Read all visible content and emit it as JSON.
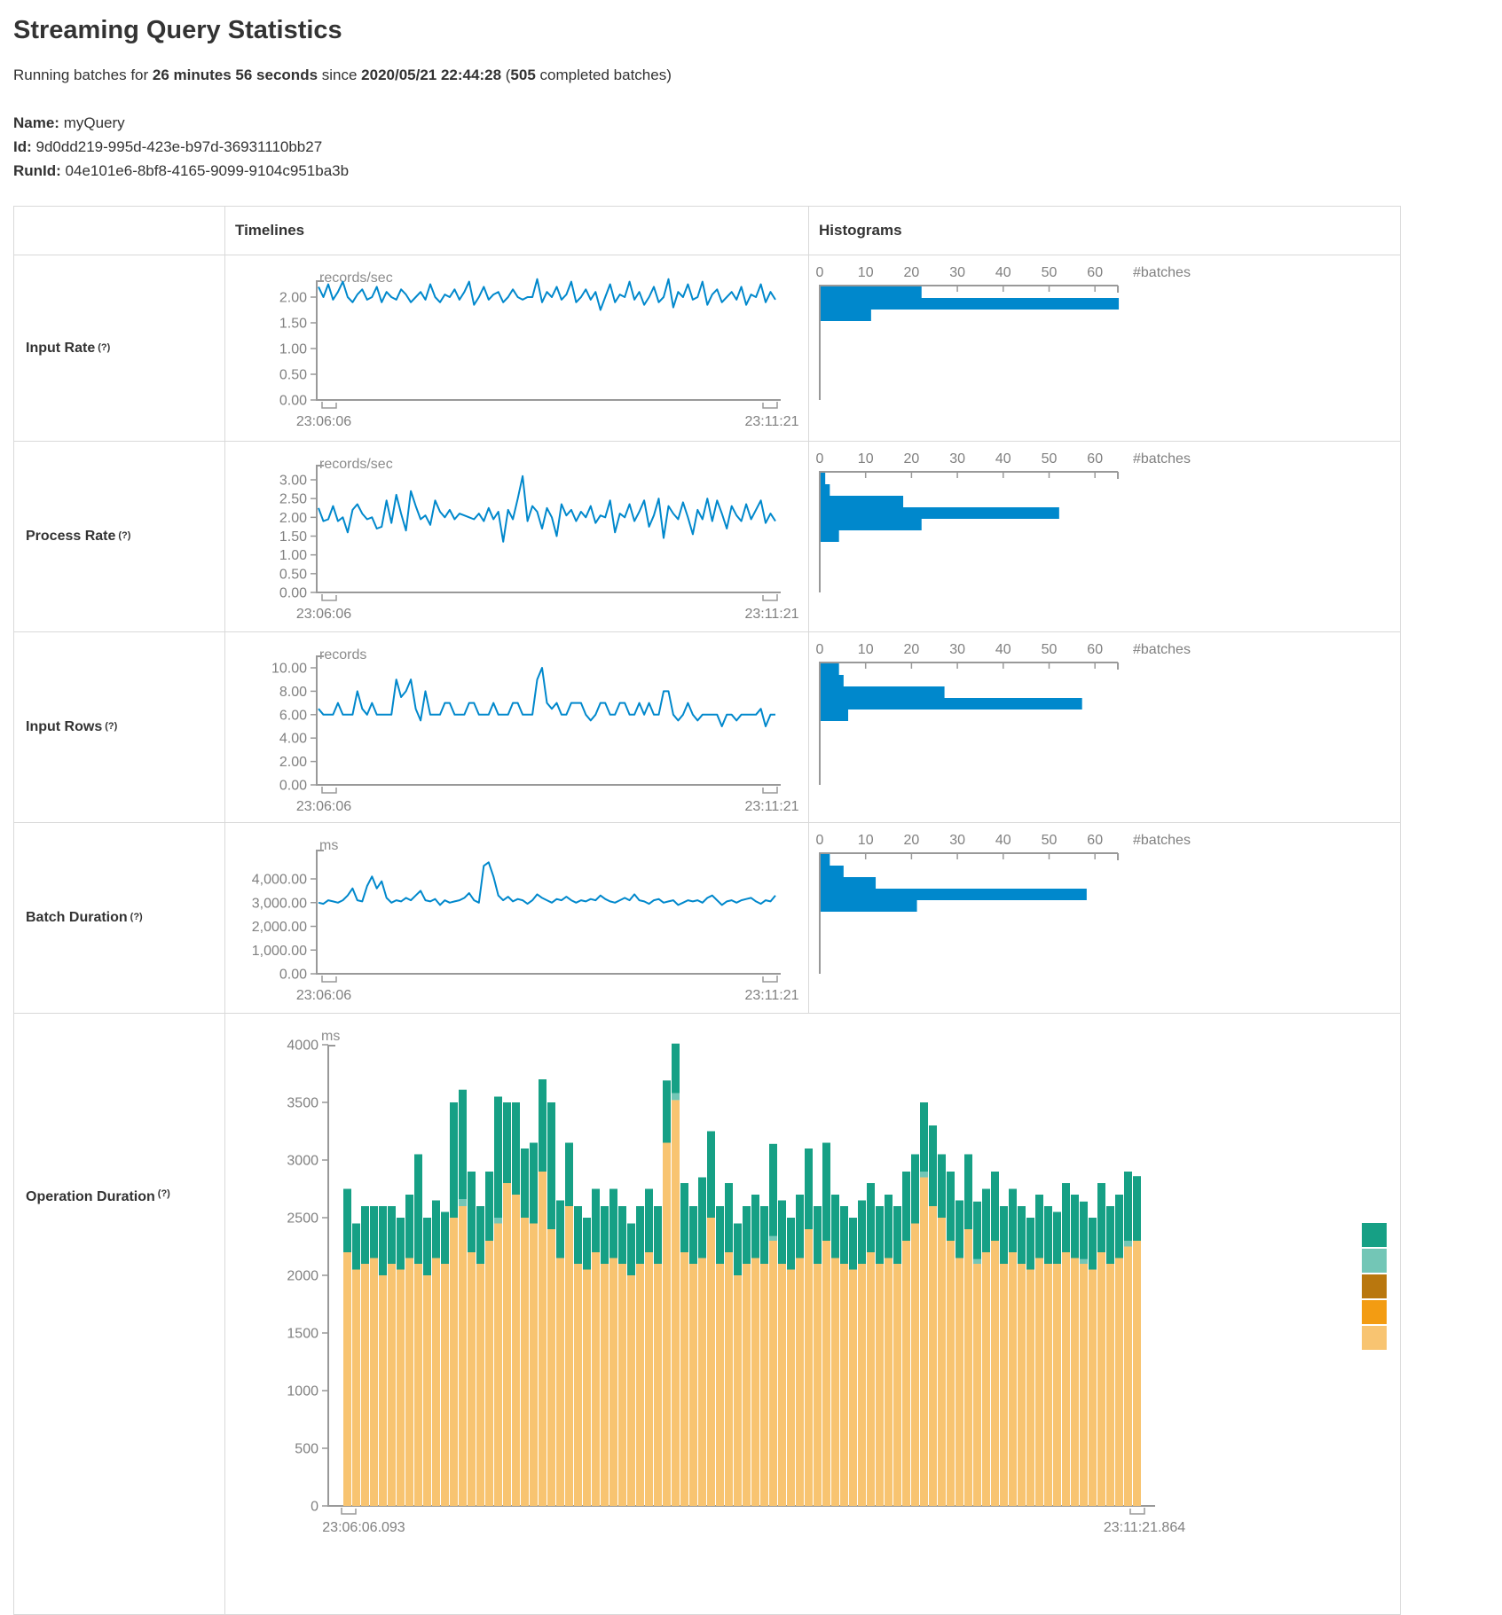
{
  "page": {
    "title": "Streaming Query Statistics",
    "subtitle_parts": [
      {
        "text": "Running batches for ",
        "bold": false
      },
      {
        "text": "26 minutes 56 seconds",
        "bold": true
      },
      {
        "text": " since ",
        "bold": false
      },
      {
        "text": "2020/05/21 22:44:28",
        "bold": true
      },
      {
        "text": " (",
        "bold": false
      },
      {
        "text": "505",
        "bold": true
      },
      {
        "text": " completed batches)",
        "bold": false
      }
    ],
    "meta": [
      {
        "key": "name",
        "label": "Name:",
        "value": "myQuery"
      },
      {
        "key": "id",
        "label": "Id:",
        "value": "9d0dd219-995d-423e-b97d-36931110bb27"
      },
      {
        "key": "runid",
        "label": "RunId:",
        "value": "04e101e6-8bf8-4165-9099-9104c951ba3b"
      }
    ]
  },
  "table": {
    "headers": {
      "timelines": "Timelines",
      "histograms": "Histograms"
    },
    "rows": [
      {
        "label": "Input Rate",
        "help": "(?)"
      },
      {
        "label": "Process Rate",
        "help": "(?)"
      },
      {
        "label": "Input Rows",
        "help": "(?)"
      },
      {
        "label": "Batch Duration",
        "help": "(?)"
      },
      {
        "label": "Operation Duration",
        "help": "(?)"
      }
    ]
  },
  "colors": {
    "line": "#0088cc",
    "bar": "#0088cc",
    "axis": "#999999",
    "tick_text": "#808080",
    "teal": "#16A085",
    "light_teal": "#73C6B6",
    "brown": "#B9770E",
    "orange": "#F39C12",
    "tan": "#F8C471",
    "border": "#d9d9d9"
  },
  "legend": {
    "colors": [
      "#16A085",
      "#73C6B6",
      "#B9770E",
      "#F39C12",
      "#F8C471"
    ]
  },
  "chart_data": [
    {
      "id": "input-rate-timeline",
      "row": "Input Rate",
      "type": "line",
      "unit": "records/sec",
      "x_start": "23:06:06",
      "x_end": "23:11:21",
      "ytick_labels": [
        "0.00",
        "0.50",
        "1.00",
        "1.50",
        "2.00"
      ],
      "ytick_values": [
        0,
        0.5,
        1,
        1.5,
        2
      ],
      "values": [
        2.2,
        2.0,
        2.25,
        1.95,
        2.1,
        2.3,
        2.0,
        1.9,
        2.05,
        2.15,
        1.95,
        2.0,
        2.2,
        1.9,
        2.1,
        2.0,
        1.95,
        2.15,
        2.05,
        1.9,
        2.0,
        2.1,
        1.95,
        2.25,
        2.0,
        1.9,
        2.05,
        2.0,
        2.15,
        1.95,
        2.1,
        2.3,
        1.85,
        2.0,
        2.2,
        1.95,
        2.05,
        2.1,
        1.9,
        2.0,
        2.15,
        2.0,
        1.95,
        2.0,
        2.0,
        2.35,
        1.9,
        2.1,
        2.0,
        2.2,
        1.95,
        2.05,
        2.3,
        1.9,
        2.0,
        2.15,
        1.95,
        2.1,
        1.75,
        2.0,
        2.25,
        1.9,
        2.05,
        2.0,
        2.3,
        1.95,
        2.1,
        1.85,
        2.0,
        2.2,
        1.9,
        2.0,
        2.35,
        1.8,
        2.1,
        2.0,
        2.25,
        1.95,
        2.0,
        2.3,
        1.85,
        2.05,
        2.15,
        1.9,
        2.0,
        2.1,
        1.95,
        2.2,
        1.85,
        2.05,
        2.0,
        2.25,
        1.9,
        2.1,
        1.95
      ]
    },
    {
      "id": "input-rate-histogram",
      "row": "Input Rate",
      "type": "bar",
      "orientation": "horizontal",
      "xlabel": "#batches",
      "xticks": [
        0,
        10,
        20,
        30,
        40,
        50,
        60
      ],
      "values": [
        22,
        65,
        11
      ]
    },
    {
      "id": "process-rate-timeline",
      "row": "Process Rate",
      "type": "line",
      "unit": "records/sec",
      "x_start": "23:06:06",
      "x_end": "23:11:21",
      "ytick_labels": [
        "0.00",
        "0.50",
        "1.00",
        "1.50",
        "2.00",
        "2.50",
        "3.00"
      ],
      "ytick_values": [
        0,
        0.5,
        1,
        1.5,
        2,
        2.5,
        3
      ],
      "values": [
        2.25,
        1.9,
        1.95,
        2.3,
        1.9,
        2.0,
        1.6,
        2.2,
        2.35,
        2.1,
        1.95,
        2.0,
        1.7,
        1.75,
        2.45,
        1.85,
        2.6,
        2.1,
        1.65,
        2.7,
        2.3,
        1.95,
        2.05,
        1.8,
        2.45,
        2.15,
        2.0,
        2.2,
        1.95,
        2.1,
        2.05,
        2.0,
        1.95,
        2.1,
        1.9,
        2.25,
        1.95,
        2.15,
        1.35,
        2.2,
        1.95,
        2.5,
        3.1,
        1.9,
        2.3,
        2.15,
        1.7,
        2.25,
        2.0,
        1.5,
        2.35,
        2.05,
        2.2,
        1.9,
        2.15,
        2.0,
        2.3,
        1.85,
        2.05,
        2.0,
        2.45,
        1.6,
        2.1,
        2.0,
        2.35,
        1.9,
        2.15,
        2.45,
        1.75,
        2.05,
        2.5,
        1.45,
        2.3,
        2.1,
        1.95,
        2.4,
        2.0,
        1.55,
        2.2,
        1.95,
        2.5,
        1.9,
        2.45,
        2.1,
        1.7,
        2.3,
        2.05,
        1.9,
        2.35,
        1.95,
        2.2,
        2.45,
        1.85,
        2.1,
        1.9
      ]
    },
    {
      "id": "process-rate-histogram",
      "row": "Process Rate",
      "type": "bar",
      "orientation": "horizontal",
      "xlabel": "#batches",
      "xticks": [
        0,
        10,
        20,
        30,
        40,
        50,
        60
      ],
      "values": [
        1,
        2,
        18,
        52,
        22,
        4
      ]
    },
    {
      "id": "input-rows-timeline",
      "row": "Input Rows",
      "type": "line",
      "unit": "records",
      "x_start": "23:06:06",
      "x_end": "23:11:21",
      "ytick_labels": [
        "0.00",
        "2.00",
        "4.00",
        "6.00",
        "8.00",
        "10.00"
      ],
      "ytick_values": [
        0,
        2,
        4,
        6,
        8,
        10
      ],
      "values": [
        6.5,
        6,
        6,
        6,
        7,
        6,
        6,
        6,
        8,
        6.5,
        6,
        7,
        6,
        6,
        6,
        6,
        9,
        7.5,
        8,
        9,
        6.5,
        5.5,
        8,
        6,
        6,
        6,
        7,
        7,
        6,
        6,
        6,
        7,
        7,
        6,
        6,
        6,
        7,
        6,
        6,
        6,
        7,
        7,
        6,
        6,
        6,
        9,
        10,
        7,
        6.5,
        7,
        6,
        6,
        7,
        7,
        7,
        6,
        5.5,
        6,
        7,
        7,
        6,
        6,
        7,
        7,
        6,
        6,
        7,
        6,
        7,
        6,
        6,
        8,
        8,
        6,
        5.5,
        6,
        7,
        6,
        5.5,
        6,
        6,
        6,
        6,
        5,
        6,
        6,
        5.5,
        6,
        6,
        6,
        6,
        6.5,
        5,
        6,
        6
      ]
    },
    {
      "id": "input-rows-histogram",
      "row": "Input Rows",
      "type": "bar",
      "orientation": "horizontal",
      "xlabel": "#batches",
      "xticks": [
        0,
        10,
        20,
        30,
        40,
        50,
        60
      ],
      "values": [
        4,
        5,
        27,
        57,
        6
      ]
    },
    {
      "id": "batch-duration-timeline",
      "row": "Batch Duration",
      "type": "line",
      "unit": "ms",
      "x_start": "23:06:06",
      "x_end": "23:11:21",
      "ytick_labels": [
        "0.00",
        "1,000.00",
        "2,000.00",
        "3,000.00",
        "4,000.00"
      ],
      "ytick_values": [
        0,
        1000,
        2000,
        3000,
        4000
      ],
      "values": [
        3000,
        2950,
        3100,
        3050,
        3000,
        3100,
        3300,
        3600,
        3100,
        3050,
        3700,
        4100,
        3600,
        3900,
        3200,
        3000,
        3100,
        3050,
        3200,
        3100,
        3300,
        3500,
        3100,
        3050,
        3150,
        2900,
        3100,
        3000,
        3050,
        3100,
        3200,
        3400,
        3100,
        3000,
        4550,
        4700,
        4100,
        3300,
        3100,
        3250,
        3050,
        3150,
        3100,
        2950,
        3100,
        3350,
        3200,
        3100,
        3000,
        3150,
        3100,
        3250,
        3100,
        3000,
        3100,
        3050,
        3150,
        3100,
        3300,
        3150,
        3050,
        3000,
        3100,
        3200,
        3100,
        3350,
        3100,
        3050,
        2950,
        3100,
        3150,
        3000,
        3050,
        3100,
        2900,
        3000,
        3100,
        3050,
        3100,
        3000,
        3200,
        3300,
        3100,
        2900,
        3050,
        3100,
        3000,
        3100,
        3150,
        3200,
        3050,
        2950,
        3100,
        3050,
        3300
      ]
    },
    {
      "id": "batch-duration-histogram",
      "row": "Batch Duration",
      "type": "bar",
      "orientation": "horizontal",
      "xlabel": "#batches",
      "xticks": [
        0,
        10,
        20,
        30,
        40,
        50,
        60
      ],
      "values": [
        2,
        5,
        12,
        58,
        21
      ]
    },
    {
      "id": "operation-duration",
      "row": "Operation Duration",
      "type": "stacked-bar",
      "unit": "ms",
      "x_start": "23:06:06.093",
      "x_end": "23:11:21.864",
      "ytick_labels": [
        "0",
        "500",
        "1000",
        "1500",
        "2000",
        "2500",
        "3000",
        "3500",
        "4000"
      ],
      "ytick_values": [
        0,
        500,
        1000,
        1500,
        2000,
        2500,
        3000,
        3500,
        4000
      ],
      "series": [
        {
          "name": "series-bottom",
          "color": "#F8C471",
          "values": [
            2200,
            2050,
            2100,
            2150,
            2000,
            2100,
            2050,
            2150,
            2100,
            2000,
            2150,
            2100,
            2500,
            2600,
            2200,
            2100,
            2300,
            2450,
            2800,
            2700,
            2500,
            2450,
            2900,
            2400,
            2150,
            2600,
            2100,
            2050,
            2200,
            2100,
            2150,
            2100,
            2000,
            2100,
            2200,
            2100,
            3150,
            3520,
            2200,
            2100,
            2150,
            2500,
            2100,
            2200,
            2000,
            2100,
            2150,
            2100,
            2300,
            2100,
            2050,
            2150,
            2400,
            2100,
            2300,
            2150,
            2100,
            2050,
            2100,
            2200,
            2100,
            2150,
            2100,
            2300,
            2450,
            2850,
            2600,
            2500,
            2300,
            2150,
            2400,
            2100,
            2200,
            2300,
            2100,
            2200,
            2100,
            2050,
            2150,
            2100,
            2100,
            2200,
            2150,
            2100,
            2050,
            2200,
            2100,
            2150,
            2250,
            2300
          ]
        },
        {
          "name": "series-middle",
          "color": "#73C6B6",
          "values": [
            0,
            0,
            0,
            0,
            0,
            0,
            0,
            0,
            0,
            0,
            0,
            0,
            0,
            60,
            0,
            0,
            0,
            50,
            0,
            0,
            0,
            0,
            0,
            0,
            0,
            0,
            0,
            0,
            0,
            0,
            0,
            0,
            0,
            0,
            0,
            0,
            0,
            60,
            0,
            0,
            0,
            0,
            0,
            0,
            0,
            0,
            0,
            0,
            40,
            0,
            0,
            0,
            0,
            0,
            0,
            0,
            0,
            0,
            0,
            0,
            0,
            0,
            0,
            0,
            0,
            50,
            0,
            0,
            0,
            0,
            0,
            40,
            0,
            0,
            0,
            0,
            0,
            0,
            0,
            0,
            0,
            0,
            0,
            40,
            0,
            0,
            0,
            0,
            50,
            0
          ]
        },
        {
          "name": "series-top",
          "color": "#16A085",
          "values": [
            550,
            400,
            500,
            450,
            600,
            500,
            450,
            550,
            950,
            500,
            500,
            450,
            1000,
            950,
            700,
            500,
            600,
            1050,
            700,
            800,
            600,
            700,
            800,
            1100,
            500,
            550,
            500,
            450,
            550,
            500,
            600,
            500,
            450,
            500,
            550,
            500,
            540,
            430,
            600,
            500,
            700,
            750,
            500,
            600,
            450,
            500,
            550,
            500,
            800,
            550,
            450,
            550,
            700,
            500,
            850,
            550,
            500,
            450,
            550,
            600,
            500,
            550,
            500,
            600,
            600,
            600,
            700,
            550,
            600,
            500,
            650,
            500,
            550,
            600,
            500,
            550,
            500,
            450,
            550,
            500,
            450,
            600,
            550,
            500,
            450,
            600,
            500,
            550,
            600,
            560
          ]
        }
      ]
    }
  ]
}
